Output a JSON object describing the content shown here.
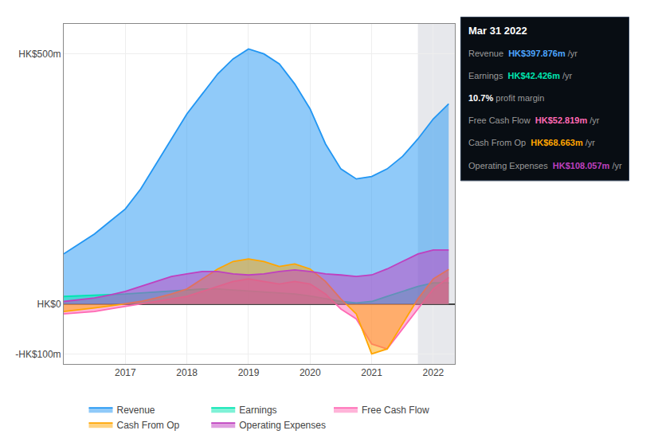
{
  "chart_data": {
    "type": "area",
    "x": [
      2016.0,
      2016.25,
      2016.5,
      2016.75,
      2017.0,
      2017.25,
      2017.5,
      2017.75,
      2018.0,
      2018.25,
      2018.5,
      2018.75,
      2019.0,
      2019.25,
      2019.5,
      2019.75,
      2020.0,
      2020.25,
      2020.5,
      2020.75,
      2021.0,
      2021.25,
      2021.5,
      2021.75,
      2022.0,
      2022.25
    ],
    "xlim": [
      2016.0,
      2022.35
    ],
    "xticks": [
      2017,
      2018,
      2019,
      2020,
      2021,
      2022
    ],
    "ylim": [
      -120,
      560
    ],
    "yticks": [
      {
        "value": -100,
        "label": "-HK$100m"
      },
      {
        "value": 0,
        "label": "HK$0"
      },
      {
        "value": 500,
        "label": "HK$500m"
      }
    ],
    "grid": true,
    "legend": "bottom",
    "shaded_x": [
      2021.75,
      2022.35
    ],
    "series": [
      {
        "name": "Revenue",
        "color": "#2196f3",
        "values": [
          100,
          120,
          140,
          165,
          190,
          230,
          280,
          330,
          380,
          420,
          460,
          490,
          510,
          500,
          480,
          440,
          390,
          320,
          270,
          250,
          255,
          270,
          295,
          330,
          370,
          400
        ]
      },
      {
        "name": "Earnings",
        "color": "#00e5b0",
        "values": [
          15,
          16,
          17,
          18,
          20,
          22,
          24,
          26,
          28,
          30,
          30,
          28,
          26,
          24,
          22,
          20,
          16,
          10,
          5,
          2,
          5,
          15,
          25,
          35,
          42,
          42
        ]
      },
      {
        "name": "Free Cash Flow",
        "color": "#ff69b4",
        "values": [
          -20,
          -18,
          -15,
          -10,
          -5,
          0,
          5,
          10,
          15,
          25,
          35,
          45,
          50,
          45,
          40,
          45,
          40,
          20,
          -10,
          -30,
          -80,
          -90,
          -50,
          -10,
          30,
          53
        ]
      },
      {
        "name": "Cash From Op",
        "color": "#ffa500",
        "values": [
          -15,
          -12,
          -8,
          -4,
          0,
          5,
          12,
          20,
          30,
          50,
          70,
          85,
          90,
          85,
          75,
          80,
          70,
          45,
          10,
          -20,
          -100,
          -90,
          -40,
          10,
          50,
          69
        ]
      },
      {
        "name": "Operating Expenses",
        "color": "#bf40bf",
        "values": [
          5,
          8,
          12,
          18,
          25,
          35,
          45,
          55,
          60,
          65,
          65,
          60,
          58,
          60,
          65,
          68,
          65,
          60,
          58,
          55,
          58,
          70,
          85,
          100,
          108,
          108
        ]
      }
    ],
    "annotations": [
      {
        "text": "Mar 31 2022"
      },
      {
        "label": "Revenue",
        "text": "HK$397.876m",
        "unit": " /yr",
        "color": "#4da6ff"
      },
      {
        "label": "Earnings",
        "text": "HK$42.426m",
        "unit": " /yr",
        "color": "#00e5b0"
      },
      {
        "text": "10.7%",
        "unit": " profit margin",
        "color": "#ffffff"
      },
      {
        "label": "Free Cash Flow",
        "text": "HK$52.819m",
        "unit": " /yr",
        "color": "#ff69b4"
      },
      {
        "label": "Cash From Op",
        "text": "HK$68.663m",
        "unit": " /yr",
        "color": "#ffa500"
      },
      {
        "label": "Operating Expenses",
        "text": "HK$108.057m",
        "unit": " /yr",
        "color": "#bf40bf"
      }
    ]
  }
}
